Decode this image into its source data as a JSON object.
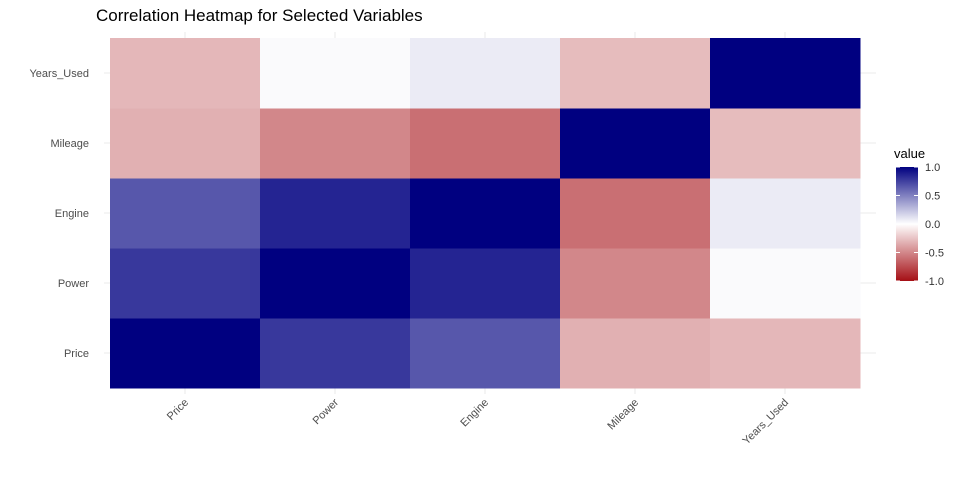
{
  "chart_data": {
    "type": "heatmap",
    "title": "Correlation Heatmap for Selected Variables",
    "xlabel": "",
    "ylabel": "",
    "x_categories": [
      "Price",
      "Power",
      "Engine",
      "Mileage",
      "Years_Used"
    ],
    "y_categories": [
      "Price",
      "Power",
      "Engine",
      "Mileage",
      "Years_Used"
    ],
    "values": [
      [
        1.0,
        0.78,
        0.66,
        -0.33,
        -0.3
      ],
      [
        0.78,
        1.0,
        0.86,
        -0.5,
        0.02
      ],
      [
        0.66,
        0.86,
        1.0,
        -0.6,
        0.08
      ],
      [
        -0.33,
        -0.5,
        -0.6,
        1.0,
        -0.28
      ],
      [
        -0.3,
        0.02,
        0.08,
        -0.28,
        1.0
      ]
    ],
    "legend": {
      "title": "value",
      "ticks": [
        "1.0",
        "0.5",
        "0.0",
        "-0.5",
        "-1.0"
      ],
      "range": [
        -1,
        1
      ],
      "placement": "right"
    },
    "colors": {
      "low": "#a50f15",
      "mid": "#ffffff",
      "high": "#000080"
    }
  }
}
